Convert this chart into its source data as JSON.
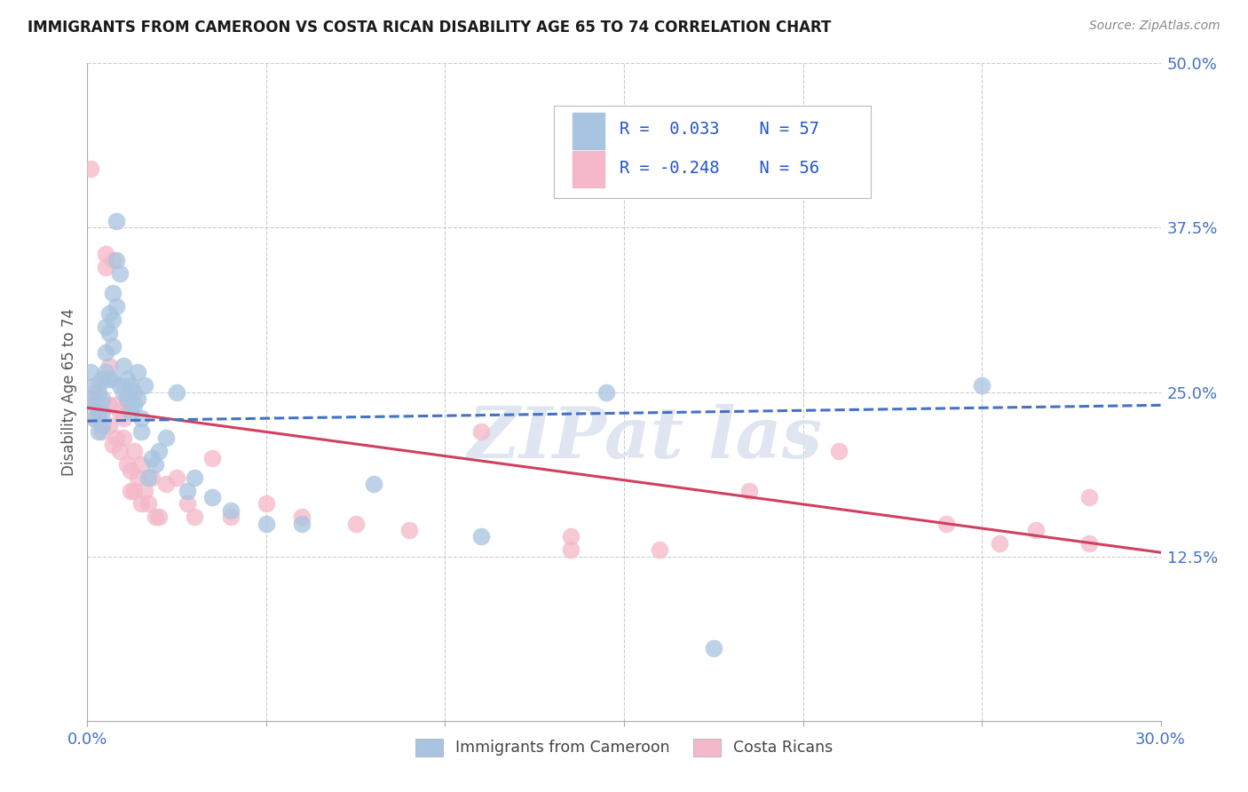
{
  "title": "IMMIGRANTS FROM CAMEROON VS COSTA RICAN DISABILITY AGE 65 TO 74 CORRELATION CHART",
  "source": "Source: ZipAtlas.com",
  "ylabel": "Disability Age 65 to 74",
  "xlim": [
    0.0,
    0.3
  ],
  "ylim": [
    0.0,
    0.5
  ],
  "ytick_labels": [
    "12.5%",
    "25.0%",
    "37.5%",
    "50.0%"
  ],
  "ytick_values": [
    0.125,
    0.25,
    0.375,
    0.5
  ],
  "xtick_positions": [
    0.0,
    0.05,
    0.1,
    0.15,
    0.2,
    0.25,
    0.3
  ],
  "xtick_labels": [
    "0.0%",
    "",
    "",
    "",
    "",
    "",
    "30.0%"
  ],
  "grid_color": "#cccccc",
  "background_color": "#ffffff",
  "blue_color": "#a8c4e0",
  "pink_color": "#f4b8c8",
  "blue_line_color": "#4472c4",
  "pink_line_color": "#d04060",
  "watermark_color": "#dce4f0",
  "legend_label1": "Immigrants from Cameroon",
  "legend_label2": "Costa Ricans",
  "blue_x": [
    0.001,
    0.001,
    0.002,
    0.002,
    0.002,
    0.003,
    0.003,
    0.003,
    0.004,
    0.004,
    0.004,
    0.004,
    0.005,
    0.005,
    0.005,
    0.006,
    0.006,
    0.006,
    0.007,
    0.007,
    0.007,
    0.007,
    0.008,
    0.008,
    0.008,
    0.009,
    0.009,
    0.01,
    0.01,
    0.011,
    0.011,
    0.012,
    0.012,
    0.013,
    0.013,
    0.014,
    0.014,
    0.015,
    0.015,
    0.016,
    0.017,
    0.018,
    0.019,
    0.02,
    0.022,
    0.025,
    0.028,
    0.03,
    0.035,
    0.04,
    0.05,
    0.06,
    0.08,
    0.11,
    0.145,
    0.175,
    0.25
  ],
  "blue_y": [
    0.265,
    0.245,
    0.255,
    0.24,
    0.23,
    0.25,
    0.235,
    0.22,
    0.26,
    0.245,
    0.235,
    0.225,
    0.3,
    0.28,
    0.265,
    0.31,
    0.295,
    0.26,
    0.325,
    0.305,
    0.285,
    0.26,
    0.38,
    0.35,
    0.315,
    0.34,
    0.255,
    0.27,
    0.25,
    0.26,
    0.245,
    0.255,
    0.235,
    0.25,
    0.24,
    0.265,
    0.245,
    0.23,
    0.22,
    0.255,
    0.185,
    0.2,
    0.195,
    0.205,
    0.215,
    0.25,
    0.175,
    0.185,
    0.17,
    0.16,
    0.15,
    0.15,
    0.18,
    0.14,
    0.25,
    0.055,
    0.255
  ],
  "pink_x": [
    0.001,
    0.001,
    0.002,
    0.002,
    0.003,
    0.003,
    0.004,
    0.004,
    0.005,
    0.005,
    0.006,
    0.006,
    0.006,
    0.007,
    0.007,
    0.008,
    0.008,
    0.009,
    0.009,
    0.01,
    0.01,
    0.011,
    0.011,
    0.012,
    0.012,
    0.013,
    0.013,
    0.014,
    0.015,
    0.015,
    0.016,
    0.017,
    0.018,
    0.019,
    0.02,
    0.022,
    0.025,
    0.028,
    0.03,
    0.035,
    0.04,
    0.05,
    0.06,
    0.075,
    0.09,
    0.11,
    0.135,
    0.16,
    0.185,
    0.21,
    0.24,
    0.265,
    0.28,
    0.255,
    0.135,
    0.28
  ],
  "pink_y": [
    0.42,
    0.245,
    0.25,
    0.23,
    0.255,
    0.235,
    0.24,
    0.22,
    0.355,
    0.345,
    0.27,
    0.24,
    0.225,
    0.35,
    0.21,
    0.24,
    0.215,
    0.235,
    0.205,
    0.23,
    0.215,
    0.245,
    0.195,
    0.19,
    0.175,
    0.205,
    0.175,
    0.185,
    0.195,
    0.165,
    0.175,
    0.165,
    0.185,
    0.155,
    0.155,
    0.18,
    0.185,
    0.165,
    0.155,
    0.2,
    0.155,
    0.165,
    0.155,
    0.15,
    0.145,
    0.22,
    0.14,
    0.13,
    0.175,
    0.205,
    0.15,
    0.145,
    0.17,
    0.135,
    0.13,
    0.135
  ],
  "blue_trend_x": [
    0.0,
    0.3
  ],
  "blue_trend_y": [
    0.228,
    0.24
  ],
  "pink_trend_x": [
    0.0,
    0.3
  ],
  "pink_trend_y": [
    0.238,
    0.128
  ]
}
